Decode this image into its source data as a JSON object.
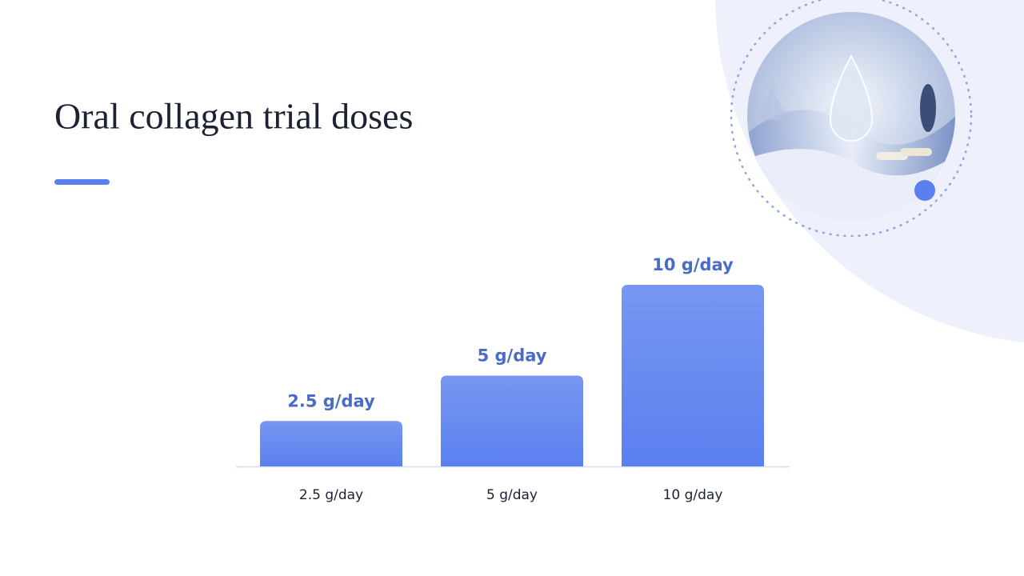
{
  "chart_data": {
    "type": "bar",
    "title": "Oral collagen trial doses",
    "categories": [
      "2.5 g/day",
      "5 g/day",
      "10 g/day"
    ],
    "values": [
      2.5,
      5,
      10
    ],
    "value_labels": [
      "2.5 g/day",
      "5 g/day",
      "10 g/day"
    ],
    "color": "#5a80ef"
  }
}
